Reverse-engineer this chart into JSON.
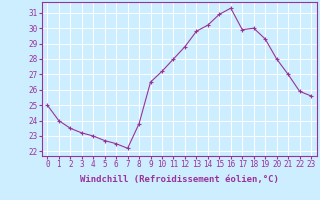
{
  "x": [
    0,
    1,
    2,
    3,
    4,
    5,
    6,
    7,
    8,
    9,
    10,
    11,
    12,
    13,
    14,
    15,
    16,
    17,
    18,
    19,
    20,
    21,
    22,
    23
  ],
  "y": [
    25.0,
    24.0,
    23.5,
    23.2,
    23.0,
    22.7,
    22.5,
    22.2,
    23.8,
    26.5,
    27.2,
    28.0,
    28.8,
    29.8,
    30.2,
    30.9,
    31.3,
    29.9,
    30.0,
    29.3,
    28.0,
    27.0,
    25.9,
    25.6
  ],
  "line_color": "#993399",
  "marker": "+",
  "markersize": 3,
  "linewidth": 0.8,
  "markeredgewidth": 0.8,
  "xlabel": "Windchill (Refroidissement éolien,°C)",
  "xlabel_fontsize": 6.5,
  "ylabel_ticks": [
    22,
    23,
    24,
    25,
    26,
    27,
    28,
    29,
    30,
    31
  ],
  "xtick_labels": [
    "0",
    "1",
    "2",
    "3",
    "4",
    "5",
    "6",
    "7",
    "8",
    "9",
    "10",
    "11",
    "12",
    "13",
    "14",
    "15",
    "16",
    "17",
    "18",
    "19",
    "20",
    "21",
    "22",
    "23"
  ],
  "ylim": [
    21.7,
    31.7
  ],
  "xlim": [
    -0.5,
    23.5
  ],
  "bg_color": "#cceeff",
  "grid_color": "#aaddcc",
  "tick_color": "#993399",
  "tick_fontsize": 5.5,
  "spine_color": "#993399"
}
